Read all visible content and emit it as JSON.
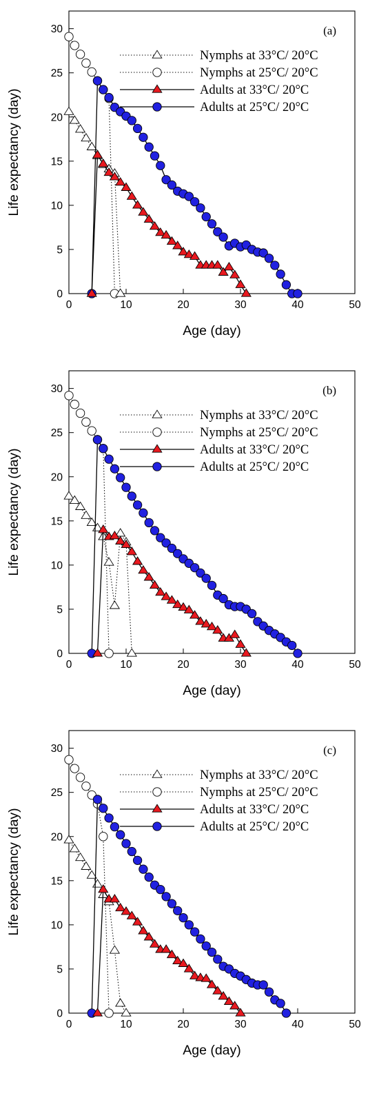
{
  "chart_data": [
    {
      "type": "line",
      "panel_label": "(a)",
      "xlabel": "Age (day)",
      "ylabel": "Life expectancy (day)",
      "xlim": [
        0,
        50
      ],
      "ylim": [
        0,
        32
      ],
      "xticks": [
        0,
        10,
        20,
        30,
        40,
        50
      ],
      "yticks": [
        0,
        5,
        10,
        15,
        20,
        25,
        30
      ],
      "legend_position": "top-right",
      "series": [
        {
          "name": "Nymphs at 33°C/ 20°C",
          "style": "dotted",
          "marker": "triangle",
          "fill": "#ffffff",
          "points": [
            [
              0,
              20.6
            ],
            [
              1,
              19.6
            ],
            [
              2,
              18.6
            ],
            [
              3,
              17.6
            ],
            [
              4,
              16.6
            ],
            [
              5,
              15.6
            ],
            [
              6,
              14.6
            ],
            [
              7,
              14.1
            ],
            [
              8,
              13.6
            ],
            [
              9,
              0
            ]
          ]
        },
        {
          "name": "Nymphs at 25°C/ 20°C",
          "style": "dotted",
          "marker": "circle",
          "fill": "#ffffff",
          "points": [
            [
              0,
              29.1
            ],
            [
              1,
              28.1
            ],
            [
              2,
              27.1
            ],
            [
              3,
              26.1
            ],
            [
              4,
              25.1
            ],
            [
              5,
              24.1
            ],
            [
              6,
              23.1
            ],
            [
              7,
              22.1
            ],
            [
              8,
              0
            ]
          ]
        },
        {
          "name": "Adults at 33°C/ 20°C",
          "style": "solid",
          "marker": "triangle",
          "fill": "#e8191f",
          "points": [
            [
              4,
              0
            ],
            [
              5,
              15.7
            ],
            [
              6,
              14.7
            ],
            [
              7,
              13.7
            ],
            [
              8,
              13.2
            ],
            [
              9,
              12.6
            ],
            [
              10,
              12.0
            ],
            [
              11,
              11.0
            ],
            [
              12,
              10.0
            ],
            [
              13,
              9.2
            ],
            [
              14,
              8.4
            ],
            [
              15,
              7.6
            ],
            [
              16,
              6.9
            ],
            [
              17,
              6.6
            ],
            [
              18,
              5.9
            ],
            [
              19,
              5.4
            ],
            [
              20,
              4.7
            ],
            [
              21,
              4.4
            ],
            [
              22,
              4.2
            ],
            [
              23,
              3.2
            ],
            [
              24,
              3.2
            ],
            [
              25,
              3.2
            ],
            [
              26,
              3.2
            ],
            [
              27,
              2.4
            ],
            [
              28,
              3.0
            ],
            [
              29,
              2.1
            ],
            [
              30,
              1.0
            ],
            [
              31,
              0
            ]
          ]
        },
        {
          "name": "Adults at 25°C/ 20°C",
          "style": "solid",
          "marker": "circle",
          "fill": "#2121e0",
          "points": [
            [
              4,
              0
            ],
            [
              5,
              24.1
            ],
            [
              6,
              23.1
            ],
            [
              7,
              22.2
            ],
            [
              8,
              21.1
            ],
            [
              9,
              20.6
            ],
            [
              10,
              20.1
            ],
            [
              11,
              19.6
            ],
            [
              12,
              18.7
            ],
            [
              13,
              17.7
            ],
            [
              14,
              16.6
            ],
            [
              15,
              15.6
            ],
            [
              16,
              14.5
            ],
            [
              17,
              12.9
            ],
            [
              18,
              12.3
            ],
            [
              19,
              11.6
            ],
            [
              20,
              11.3
            ],
            [
              21,
              11.0
            ],
            [
              22,
              10.4
            ],
            [
              23,
              9.7
            ],
            [
              24,
              8.7
            ],
            [
              25,
              7.9
            ],
            [
              26,
              7.0
            ],
            [
              27,
              6.4
            ],
            [
              28,
              5.4
            ],
            [
              29,
              5.7
            ],
            [
              30,
              5.3
            ],
            [
              31,
              5.5
            ],
            [
              32,
              5.0
            ],
            [
              33,
              4.7
            ],
            [
              34,
              4.6
            ],
            [
              35,
              4.0
            ],
            [
              36,
              3.2
            ],
            [
              37,
              2.2
            ],
            [
              38,
              1.0
            ],
            [
              39,
              0
            ],
            [
              40,
              0
            ]
          ]
        }
      ]
    },
    {
      "type": "line",
      "panel_label": "(b)",
      "xlabel": "Age (day)",
      "ylabel": "Life expectancy (day)",
      "xlim": [
        0,
        50
      ],
      "ylim": [
        0,
        32
      ],
      "xticks": [
        0,
        10,
        20,
        30,
        40,
        50
      ],
      "yticks": [
        0,
        5,
        10,
        15,
        20,
        25,
        30
      ],
      "legend_position": "top-right",
      "series": [
        {
          "name": "Nymphs at 33°C/ 20°C",
          "style": "dotted",
          "marker": "triangle",
          "fill": "#ffffff",
          "points": [
            [
              0,
              17.8
            ],
            [
              1,
              17.3
            ],
            [
              2,
              16.6
            ],
            [
              3,
              15.6
            ],
            [
              4,
              14.8
            ],
            [
              5,
              14.2
            ],
            [
              6,
              13.2
            ],
            [
              7,
              10.3
            ],
            [
              8,
              5.4
            ],
            [
              9,
              13.6
            ],
            [
              10,
              12.6
            ],
            [
              11,
              0
            ]
          ]
        },
        {
          "name": "Nymphs at 25°C/ 20°C",
          "style": "dotted",
          "marker": "circle",
          "fill": "#ffffff",
          "points": [
            [
              0,
              29.2
            ],
            [
              1,
              28.2
            ],
            [
              2,
              27.2
            ],
            [
              3,
              26.2
            ],
            [
              4,
              25.2
            ],
            [
              5,
              24.2
            ],
            [
              6,
              23.2
            ],
            [
              7,
              0
            ]
          ]
        },
        {
          "name": "Adults at 33°C/ 20°C",
          "style": "solid",
          "marker": "triangle",
          "fill": "#e8191f",
          "points": [
            [
              5,
              0
            ],
            [
              6,
              14.0
            ],
            [
              7,
              13.2
            ],
            [
              8,
              13.3
            ],
            [
              9,
              12.7
            ],
            [
              10,
              12.3
            ],
            [
              11,
              11.5
            ],
            [
              12,
              10.4
            ],
            [
              13,
              9.4
            ],
            [
              14,
              8.6
            ],
            [
              15,
              7.7
            ],
            [
              16,
              6.9
            ],
            [
              17,
              6.4
            ],
            [
              18,
              6.0
            ],
            [
              19,
              5.5
            ],
            [
              20,
              5.2
            ],
            [
              21,
              4.9
            ],
            [
              22,
              4.3
            ],
            [
              23,
              3.6
            ],
            [
              24,
              3.3
            ],
            [
              25,
              3.0
            ],
            [
              26,
              2.6
            ],
            [
              27,
              1.7
            ],
            [
              28,
              1.7
            ],
            [
              29,
              2.1
            ],
            [
              30,
              1.0
            ],
            [
              31,
              0
            ]
          ]
        },
        {
          "name": "Adults at 25°C/ 20°C",
          "style": "solid",
          "marker": "circle",
          "fill": "#2121e0",
          "points": [
            [
              4,
              0
            ],
            [
              5,
              24.2
            ],
            [
              6,
              23.2
            ],
            [
              7,
              22.0
            ],
            [
              8,
              20.9
            ],
            [
              9,
              19.9
            ],
            [
              10,
              18.8
            ],
            [
              11,
              17.8
            ],
            [
              12,
              16.8
            ],
            [
              13,
              15.9
            ],
            [
              14,
              14.8
            ],
            [
              15,
              13.9
            ],
            [
              16,
              13.1
            ],
            [
              17,
              12.5
            ],
            [
              18,
              11.9
            ],
            [
              19,
              11.3
            ],
            [
              20,
              10.7
            ],
            [
              21,
              10.2
            ],
            [
              22,
              9.7
            ],
            [
              23,
              9.1
            ],
            [
              24,
              8.5
            ],
            [
              25,
              7.7
            ],
            [
              26,
              6.6
            ],
            [
              27,
              6.2
            ],
            [
              28,
              5.5
            ],
            [
              29,
              5.3
            ],
            [
              30,
              5.3
            ],
            [
              31,
              5.0
            ],
            [
              32,
              4.5
            ],
            [
              33,
              3.6
            ],
            [
              34,
              3.1
            ],
            [
              35,
              2.6
            ],
            [
              36,
              2.2
            ],
            [
              37,
              1.8
            ],
            [
              38,
              1.3
            ],
            [
              39,
              0.9
            ],
            [
              40,
              0
            ]
          ]
        }
      ]
    },
    {
      "type": "line",
      "panel_label": "(c)",
      "xlabel": "Age (day)",
      "ylabel": "Life expectancy (day)",
      "xlim": [
        0,
        50
      ],
      "ylim": [
        0,
        32
      ],
      "xticks": [
        0,
        10,
        20,
        30,
        40,
        50
      ],
      "yticks": [
        0,
        5,
        10,
        15,
        20,
        25,
        30
      ],
      "legend_position": "top-right",
      "series": [
        {
          "name": "Nymphs at 33°C/ 20°C",
          "style": "dotted",
          "marker": "triangle",
          "fill": "#ffffff",
          "points": [
            [
              0,
              19.6
            ],
            [
              1,
              18.6
            ],
            [
              2,
              17.6
            ],
            [
              3,
              16.6
            ],
            [
              4,
              15.6
            ],
            [
              5,
              14.6
            ],
            [
              6,
              13.4
            ],
            [
              7,
              12.6
            ],
            [
              8,
              7.1
            ],
            [
              9,
              1.1
            ],
            [
              10,
              0
            ]
          ]
        },
        {
          "name": "Nymphs at 25°C/ 20°C",
          "style": "dotted",
          "marker": "circle",
          "fill": "#ffffff",
          "points": [
            [
              0,
              28.7
            ],
            [
              1,
              27.7
            ],
            [
              2,
              26.7
            ],
            [
              3,
              25.7
            ],
            [
              4,
              24.7
            ],
            [
              5,
              23.7
            ],
            [
              6,
              20.0
            ],
            [
              7,
              0
            ]
          ]
        },
        {
          "name": "Adults at 33°C/ 20°C",
          "style": "solid",
          "marker": "triangle",
          "fill": "#e8191f",
          "points": [
            [
              5,
              0
            ],
            [
              6,
              14.0
            ],
            [
              7,
              12.9
            ],
            [
              8,
              12.9
            ],
            [
              9,
              11.9
            ],
            [
              10,
              11.5
            ],
            [
              11,
              11.0
            ],
            [
              12,
              10.3
            ],
            [
              13,
              9.3
            ],
            [
              14,
              8.6
            ],
            [
              15,
              7.8
            ],
            [
              16,
              7.2
            ],
            [
              17,
              7.2
            ],
            [
              18,
              6.6
            ],
            [
              19,
              5.9
            ],
            [
              20,
              5.6
            ],
            [
              21,
              5.0
            ],
            [
              22,
              4.2
            ],
            [
              23,
              4.0
            ],
            [
              24,
              3.9
            ],
            [
              25,
              3.2
            ],
            [
              26,
              2.5
            ],
            [
              27,
              1.9
            ],
            [
              28,
              1.3
            ],
            [
              29,
              0.8
            ],
            [
              30,
              0
            ]
          ]
        },
        {
          "name": "Adults at 25°C/ 20°C",
          "style": "solid",
          "marker": "circle",
          "fill": "#2121e0",
          "points": [
            [
              4,
              0
            ],
            [
              5,
              24.2
            ],
            [
              6,
              23.2
            ],
            [
              7,
              22.1
            ],
            [
              8,
              21.1
            ],
            [
              9,
              20.2
            ],
            [
              10,
              19.2
            ],
            [
              11,
              18.3
            ],
            [
              12,
              17.3
            ],
            [
              13,
              16.3
            ],
            [
              14,
              15.4
            ],
            [
              15,
              14.5
            ],
            [
              16,
              14.0
            ],
            [
              17,
              13.2
            ],
            [
              18,
              12.4
            ],
            [
              19,
              11.6
            ],
            [
              20,
              10.8
            ],
            [
              21,
              10.0
            ],
            [
              22,
              9.2
            ],
            [
              23,
              8.4
            ],
            [
              24,
              7.6
            ],
            [
              25,
              6.9
            ],
            [
              26,
              6.1
            ],
            [
              27,
              5.3
            ],
            [
              28,
              5.0
            ],
            [
              29,
              4.5
            ],
            [
              30,
              4.2
            ],
            [
              31,
              3.8
            ],
            [
              32,
              3.4
            ],
            [
              33,
              3.2
            ],
            [
              34,
              3.2
            ],
            [
              35,
              2.4
            ],
            [
              36,
              1.5
            ],
            [
              37,
              1.1
            ],
            [
              38,
              0
            ]
          ]
        }
      ]
    }
  ]
}
